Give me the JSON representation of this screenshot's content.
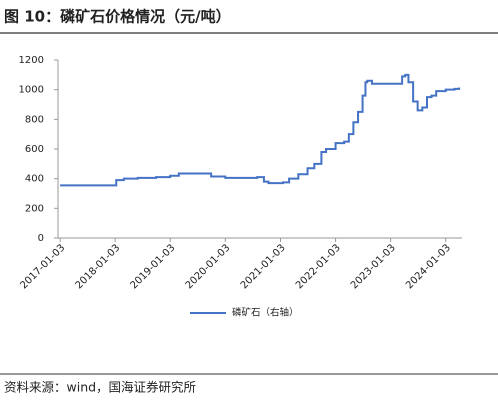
{
  "chart_data": {
    "type": "line",
    "title": "图 10：磷矿石价格情况（元/吨）",
    "source": "资料来源：wind，国海证券研究所",
    "step": true,
    "x": [
      "2017-01-03",
      "2017-12-20",
      "2018-01-10",
      "2018-03-01",
      "2018-06-01",
      "2018-10-01",
      "2019-01-03",
      "2019-03-01",
      "2019-10-01",
      "2020-01-03",
      "2020-08-01",
      "2020-09-15",
      "2020-10-15",
      "2021-01-20",
      "2021-03-01",
      "2021-05-01",
      "2021-07-01",
      "2021-08-15",
      "2021-10-01",
      "2021-11-01",
      "2022-01-03",
      "2022-03-01",
      "2022-04-01",
      "2022-05-01",
      "2022-06-01",
      "2022-07-01",
      "2022-07-20",
      "2022-08-01",
      "2022-09-01",
      "2023-03-01",
      "2023-03-20",
      "2023-04-10",
      "2023-05-01",
      "2023-06-01",
      "2023-07-01",
      "2023-08-01",
      "2023-09-01",
      "2023-10-01",
      "2023-11-01",
      "2024-01-03",
      "2024-03-01",
      "2024-04-01"
    ],
    "series": [
      {
        "name": "磷矿石（右轴）",
        "color": "#4472c4",
        "values": [
          355,
          355,
          390,
          400,
          405,
          410,
          420,
          435,
          415,
          405,
          410,
          380,
          370,
          375,
          400,
          430,
          470,
          500,
          580,
          600,
          640,
          650,
          700,
          780,
          850,
          960,
          1050,
          1060,
          1040,
          1040,
          1090,
          1100,
          1050,
          920,
          860,
          880,
          950,
          960,
          990,
          1000,
          1005,
          1015
        ]
      }
    ],
    "xlim": [
      "2016-12-20",
      "2024-04-20"
    ],
    "xticks": [
      "2017-01-03",
      "2018-01-03",
      "2019-01-03",
      "2020-01-03",
      "2021-01-03",
      "2022-01-03",
      "2023-01-03",
      "2024-01-03"
    ],
    "ylim": [
      0,
      1200
    ],
    "yticks": [
      0,
      200,
      400,
      600,
      800,
      1000,
      1200
    ],
    "grid": false,
    "legend": "bottom"
  }
}
